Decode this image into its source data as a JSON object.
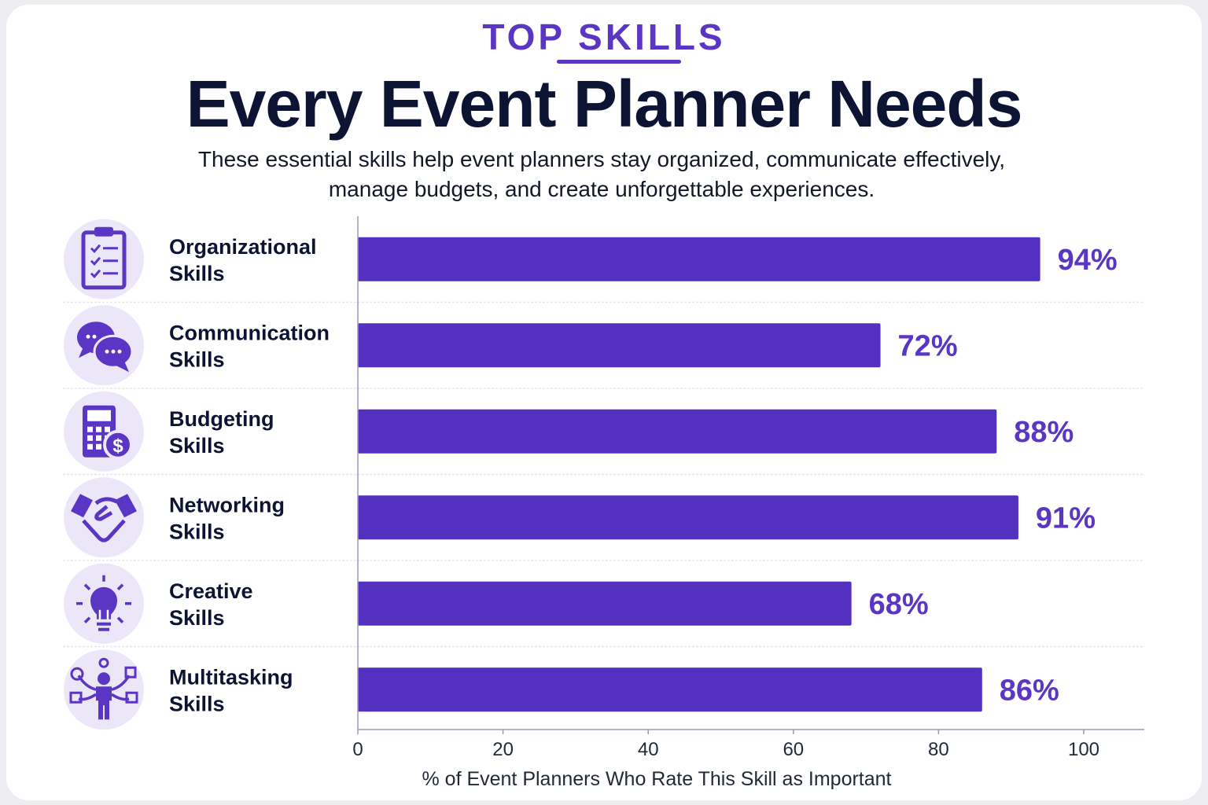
{
  "header": {
    "eyebrow": "TOP SKILLS",
    "title": "Every Event Planner Needs",
    "subtitle_line1": "These essential skills help event planners stay organized, communicate effectively,",
    "subtitle_line2": "manage budgets, and create unforgettable experiences."
  },
  "colors": {
    "bar": "#5330c0",
    "accent": "#5b35c4",
    "icon_bg": "#ece7f8",
    "text": "#0d1433"
  },
  "chart_data": {
    "type": "bar",
    "orientation": "horizontal",
    "categories": [
      "Organizational Skills",
      "Communication Skills",
      "Budgeting Skills",
      "Networking Skills",
      "Creative Skills",
      "Multitasking Skills"
    ],
    "category_lines": [
      [
        "Organizational",
        "Skills"
      ],
      [
        "Communication",
        "Skills"
      ],
      [
        "Budgeting",
        "Skills"
      ],
      [
        "Networking",
        "Skills"
      ],
      [
        "Creative",
        "Skills"
      ],
      [
        "Multitasking",
        "Skills"
      ]
    ],
    "icons": [
      "clipboard-checklist-icon",
      "chat-bubbles-icon",
      "calculator-dollar-icon",
      "handshake-icon",
      "lightbulb-icon",
      "multitasking-person-icon"
    ],
    "values": [
      94,
      72,
      88,
      91,
      68,
      86
    ],
    "data_labels": [
      "94%",
      "72%",
      "88%",
      "91%",
      "68%",
      "86%"
    ],
    "xlabel": "% of Event Planners Who Rate This Skill as Important",
    "xlim": [
      0,
      100
    ],
    "xticks": [
      0,
      20,
      40,
      60,
      80,
      100
    ],
    "grid": false
  }
}
